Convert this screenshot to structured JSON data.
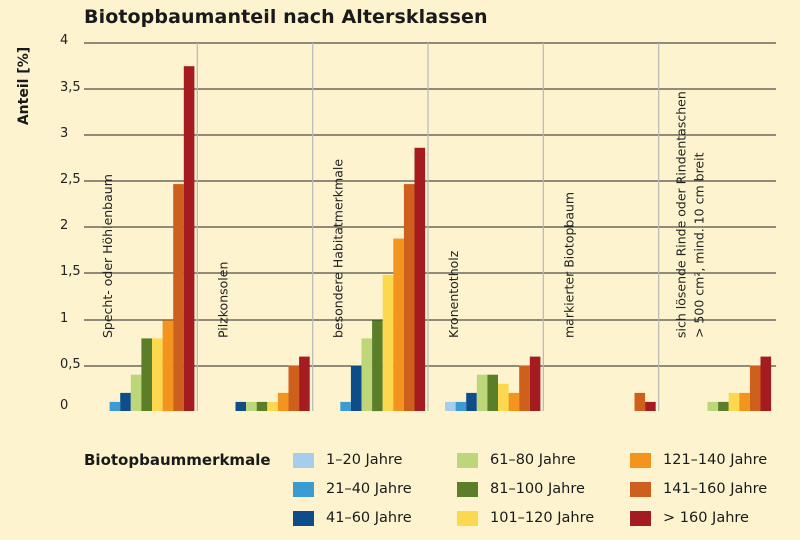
{
  "chart_data": {
    "type": "bar",
    "title": "Biotopbaumanteil nach Altersklassen",
    "ylabel": "Anteil [%]",
    "yticks": [
      "4",
      "3,5",
      "3",
      "2,5",
      "2",
      "1,5",
      "1",
      "0,5",
      "0"
    ],
    "ylim": [
      0,
      4
    ],
    "grid": true,
    "legend_title": "Biotopbaummerkmale",
    "legend_position": "bottom",
    "categories": [
      "Specht- oder Höhlenbaum",
      "Pilzkonsolen",
      "besondere Habitatmerkmale",
      "Kronentotholz",
      "markierter Biotopbaum",
      "sich lösende Rinde oder Rindentaschen|> 500 cm², mind. 10 cm breit"
    ],
    "series": [
      {
        "name": "1–20 Jahre",
        "color": "#a7cdec",
        "values": [
          0,
          0,
          0,
          0.1,
          0,
          0
        ]
      },
      {
        "name": "21–40 Jahre",
        "color": "#3d9bd3",
        "values": [
          0.1,
          0,
          0.1,
          0.1,
          0,
          0
        ]
      },
      {
        "name": "41–60 Jahre",
        "color": "#0e4d8a",
        "values": [
          0.2,
          0.1,
          0.5,
          0.2,
          0,
          0
        ]
      },
      {
        "name": "61–80 Jahre",
        "color": "#bcd679",
        "values": [
          0.4,
          0.1,
          0.8,
          0.4,
          0,
          0.1
        ]
      },
      {
        "name": "81–100 Jahre",
        "color": "#5b7f28",
        "values": [
          0.8,
          0.1,
          1.0,
          0.4,
          0,
          0.1
        ]
      },
      {
        "name": "101–120 Jahre",
        "color": "#fcd84e",
        "values": [
          0.8,
          0.1,
          1.5,
          0.3,
          0,
          0.2
        ]
      },
      {
        "name": "121–140 Jahre",
        "color": "#f3941e",
        "values": [
          1.0,
          0.2,
          1.9,
          0.2,
          0,
          0.2
        ]
      },
      {
        "name": "141–160 Jahre",
        "color": "#ce5f1c",
        "values": [
          2.5,
          0.5,
          2.5,
          0.5,
          0.2,
          0.5
        ]
      },
      {
        "name": "> 160 Jahre",
        "color": "#a41b20",
        "values": [
          3.8,
          0.6,
          2.9,
          0.6,
          0.1,
          0.6
        ]
      }
    ]
  }
}
